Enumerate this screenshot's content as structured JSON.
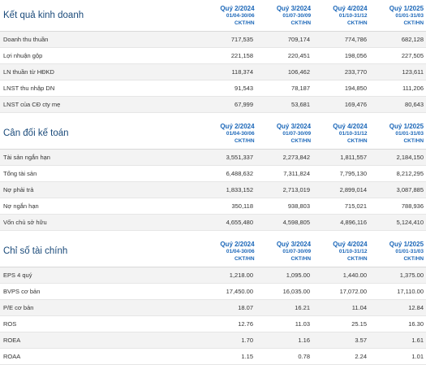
{
  "periods": [
    {
      "quarter": "Quý 2/2024",
      "range": "01/04-30/06",
      "unit": "CKT/HN"
    },
    {
      "quarter": "Quý 3/2024",
      "range": "01/07-30/09",
      "unit": "CKT/HN"
    },
    {
      "quarter": "Quý 4/2024",
      "range": "01/10-31/12",
      "unit": "CKT/HN"
    },
    {
      "quarter": "Quý 1/2025",
      "range": "01/01-31/03",
      "unit": "CKT/HN"
    }
  ],
  "sections": [
    {
      "title": "Kết quả kinh doanh",
      "rows": [
        {
          "label": "Doanh thu thuần",
          "values": [
            "717,535",
            "709,174",
            "774,786",
            "682,128"
          ]
        },
        {
          "label": "Lợi nhuận gộp",
          "values": [
            "221,158",
            "220,451",
            "198,056",
            "227,505"
          ]
        },
        {
          "label": "LN thuần từ HĐKD",
          "values": [
            "118,374",
            "106,462",
            "233,770",
            "123,611"
          ]
        },
        {
          "label": "LNST thu nhập DN",
          "values": [
            "91,543",
            "78,187",
            "194,850",
            "111,206"
          ]
        },
        {
          "label": "LNST của CĐ cty mẹ",
          "values": [
            "67,999",
            "53,681",
            "169,476",
            "80,643"
          ]
        }
      ]
    },
    {
      "title": "Cân đối kế toán",
      "rows": [
        {
          "label": "Tài sản ngắn hạn",
          "values": [
            "3,551,337",
            "2,273,842",
            "1,811,557",
            "2,184,150"
          ]
        },
        {
          "label": "Tổng tài sản",
          "values": [
            "6,488,632",
            "7,311,824",
            "7,795,130",
            "8,212,295"
          ]
        },
        {
          "label": "Nợ phải trả",
          "values": [
            "1,833,152",
            "2,713,019",
            "2,899,014",
            "3,087,885"
          ]
        },
        {
          "label": "Nợ ngắn hạn",
          "values": [
            "350,118",
            "938,803",
            "715,021",
            "788,936"
          ]
        },
        {
          "label": "Vốn chủ sở hữu",
          "values": [
            "4,655,480",
            "4,598,805",
            "4,896,116",
            "5,124,410"
          ]
        }
      ]
    },
    {
      "title": "Chỉ số tài chính",
      "rows": [
        {
          "label": "EPS 4 quý",
          "values": [
            "1,218.00",
            "1,095.00",
            "1,440.00",
            "1,375.00"
          ]
        },
        {
          "label": "BVPS cơ bản",
          "values": [
            "17,450.00",
            "16,035.00",
            "17,072.00",
            "17,110.00"
          ]
        },
        {
          "label": "P/E cơ bản",
          "values": [
            "18.07",
            "16.21",
            "11.04",
            "12.84"
          ]
        },
        {
          "label": "ROS",
          "values": [
            "12.76",
            "11.03",
            "25.15",
            "16.30"
          ]
        },
        {
          "label": "ROEA",
          "values": [
            "1.70",
            "1.16",
            "3.57",
            "1.61"
          ]
        },
        {
          "label": "ROAA",
          "values": [
            "1.15",
            "0.78",
            "2.24",
            "1.01"
          ]
        }
      ]
    }
  ]
}
